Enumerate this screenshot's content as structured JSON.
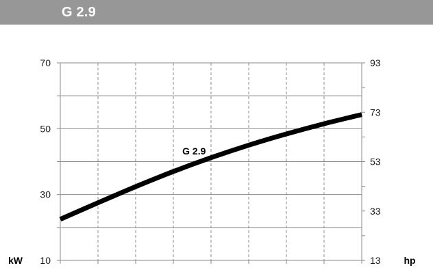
{
  "header": {
    "title": "G 2.9"
  },
  "chart_data": {
    "type": "line",
    "title": "G 2.9",
    "left_axis": {
      "unit": "kW",
      "ylim": [
        10,
        70
      ],
      "tick_labels": [
        "70",
        "50",
        "30",
        "10"
      ],
      "tick_values": [
        70,
        50,
        30,
        10
      ]
    },
    "right_axis": {
      "unit": "hp",
      "ylim": [
        13,
        93
      ],
      "tick_labels": [
        "93",
        "73",
        "53",
        "33",
        "13"
      ],
      "tick_values": [
        93,
        73,
        53,
        33,
        13
      ]
    },
    "x_divisions": 8,
    "grid": true,
    "series": [
      {
        "name": "G 2.9",
        "x": [
          0,
          1,
          2,
          3,
          4,
          5,
          6,
          7,
          8
        ],
        "values": [
          22.5,
          27.5,
          32.4,
          37.0,
          41.2,
          45.0,
          48.4,
          51.5,
          54.3
        ]
      }
    ],
    "colors": {
      "line": "#000000",
      "grid": "#8a8a8a",
      "axis": "#8a8a8a"
    }
  }
}
